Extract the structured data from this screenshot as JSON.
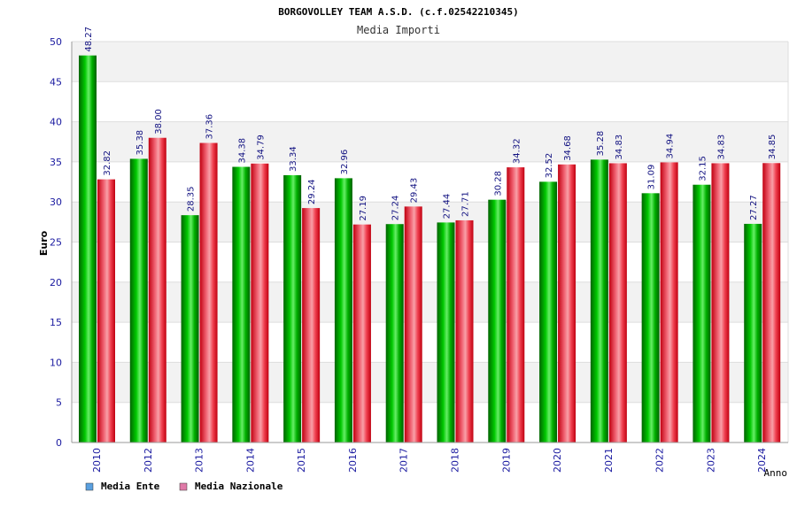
{
  "chart_data": {
    "type": "bar",
    "title": "BORGOVOLLEY TEAM A.S.D. (c.f.02542210345)",
    "subtitle": "Media Importi",
    "xlabel": "Anno",
    "ylabel": "Euro",
    "ylim": [
      0,
      50
    ],
    "yticks": [
      "0",
      "5",
      "10",
      "15",
      "20",
      "25",
      "30",
      "35",
      "40",
      "45",
      "50"
    ],
    "categories": [
      "2010",
      "2012",
      "2013",
      "2014",
      "2015",
      "2016",
      "2017",
      "2018",
      "2019",
      "2020",
      "2021",
      "2022",
      "2023",
      "2024"
    ],
    "series": [
      {
        "name": "Media Ente",
        "color": "#00b400",
        "values": [
          48.27,
          35.38,
          28.35,
          34.38,
          33.34,
          32.96,
          27.24,
          27.44,
          30.28,
          32.52,
          35.28,
          31.09,
          32.15,
          27.27
        ],
        "labels": [
          "48.27",
          "35.38",
          "28.35",
          "34.38",
          "33.34",
          "32.96",
          "27.24",
          "27.44",
          "30.28",
          "32.52",
          "35.28",
          "31.09",
          "32.15",
          "27.27"
        ]
      },
      {
        "name": "Media Nazionale",
        "color": "#e8202a",
        "values": [
          32.82,
          38.0,
          37.36,
          34.79,
          29.24,
          27.19,
          29.43,
          27.71,
          34.32,
          34.68,
          34.83,
          34.94,
          34.83,
          34.85
        ],
        "labels": [
          "32.82",
          "38.00",
          "37.36",
          "34.79",
          "29.24",
          "27.19",
          "29.43",
          "27.71",
          "34.32",
          "34.68",
          "34.83",
          "34.94",
          "34.83",
          "34.85"
        ]
      }
    ],
    "legend": {
      "placement": "bottom-left",
      "items": [
        {
          "label": "Media Ente",
          "color": "#5aa0e0"
        },
        {
          "label": "Media Nazionale",
          "color": "#e07aa8"
        }
      ]
    },
    "grid": true
  }
}
